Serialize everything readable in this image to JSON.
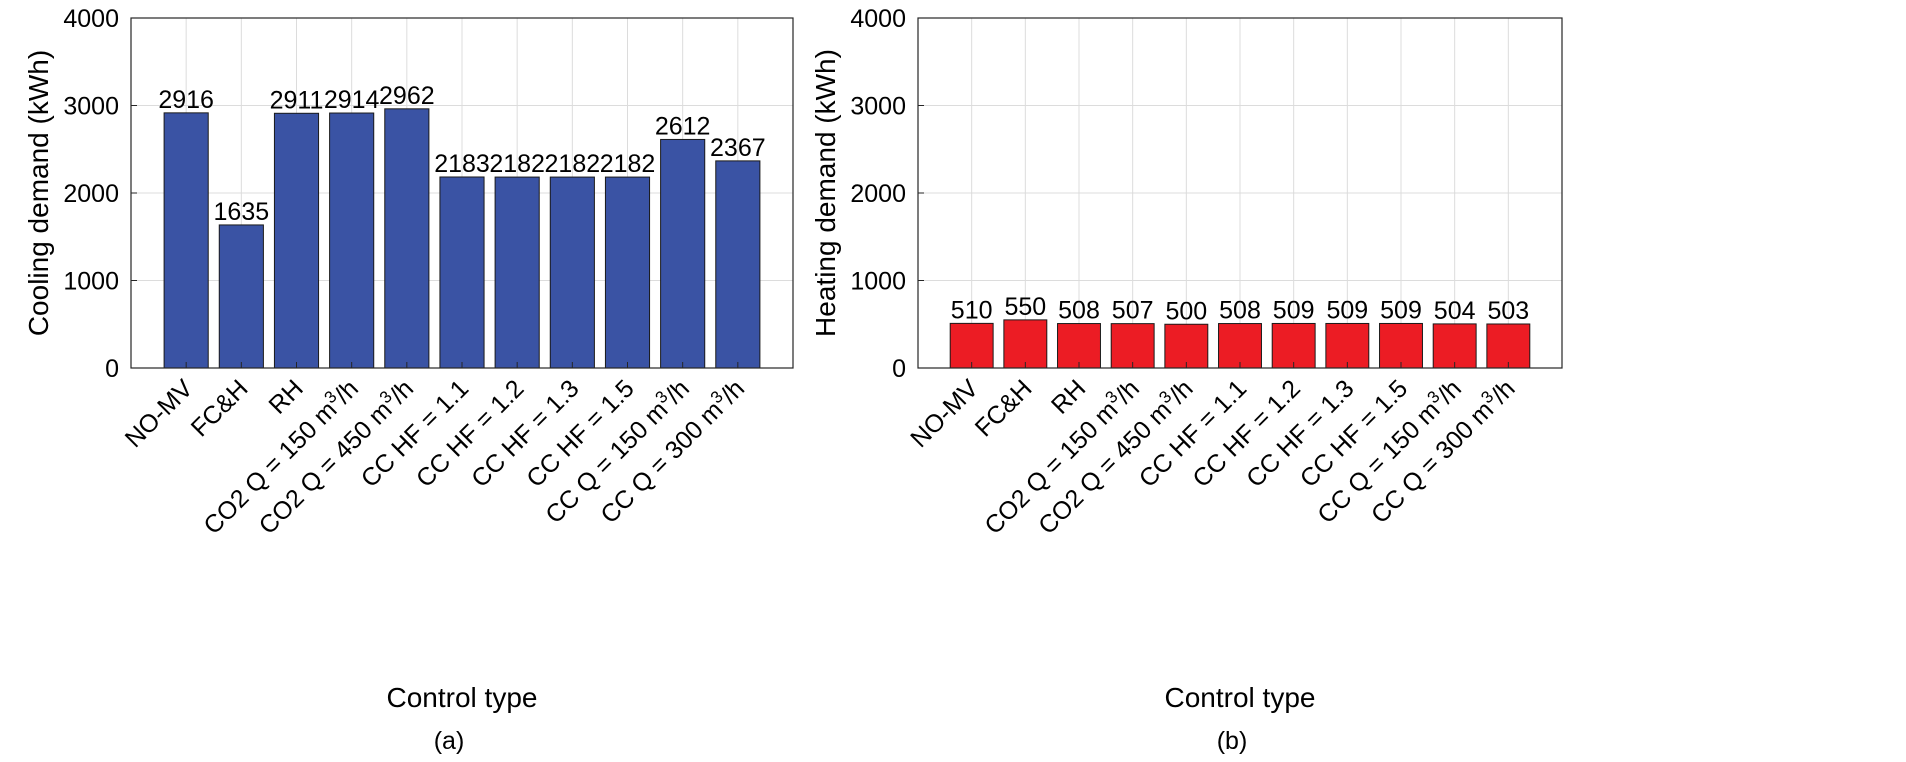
{
  "chart_data": [
    {
      "type": "bar",
      "panel_label": "(a)",
      "xlabel": "Control type",
      "ylabel": "Cooling demand (kWh)",
      "ylim": [
        0,
        4000
      ],
      "yticks": [
        0,
        1000,
        2000,
        3000,
        4000
      ],
      "grid": true,
      "color": "#3a53a4",
      "categories": [
        {
          "pre": "NO-MV"
        },
        {
          "pre": "FC&H"
        },
        {
          "pre": "RH"
        },
        {
          "pre": "CO2 Q = 150 m",
          "sup": "3",
          "post": "/h"
        },
        {
          "pre": "CO2 Q = 450 m",
          "sup": "3",
          "post": "/h"
        },
        {
          "pre": "CC HF = 1.1"
        },
        {
          "pre": "CC HF = 1.2"
        },
        {
          "pre": "CC HF = 1.3"
        },
        {
          "pre": "CC HF = 1.5"
        },
        {
          "pre": "CC Q = 150 m",
          "sup": "3",
          "post": "/h"
        },
        {
          "pre": "CC Q = 300 m",
          "sup": "3",
          "post": "/h"
        }
      ],
      "values": [
        2916,
        1635,
        2911,
        2914,
        2962,
        2183,
        2182,
        2182,
        2182,
        2612,
        2367
      ]
    },
    {
      "type": "bar",
      "panel_label": "(b)",
      "xlabel": "Control type",
      "ylabel": "Heating demand (kWh)",
      "ylim": [
        0,
        4000
      ],
      "yticks": [
        0,
        1000,
        2000,
        3000,
        4000
      ],
      "grid": true,
      "color": "#ec1c24",
      "categories": [
        {
          "pre": "NO-MV"
        },
        {
          "pre": "FC&H"
        },
        {
          "pre": "RH"
        },
        {
          "pre": "CO2 Q = 150 m",
          "sup": "3",
          "post": "/h"
        },
        {
          "pre": "CO2 Q = 450 m",
          "sup": "3",
          "post": "/h"
        },
        {
          "pre": "CC HF = 1.1"
        },
        {
          "pre": "CC HF = 1.2"
        },
        {
          "pre": "CC HF = 1.3"
        },
        {
          "pre": "CC HF = 1.5"
        },
        {
          "pre": "CC Q = 150 m",
          "sup": "3",
          "post": "/h"
        },
        {
          "pre": "CC Q = 300 m",
          "sup": "3",
          "post": "/h"
        }
      ],
      "values": [
        510,
        550,
        508,
        507,
        500,
        508,
        509,
        509,
        509,
        504,
        503
      ]
    }
  ]
}
